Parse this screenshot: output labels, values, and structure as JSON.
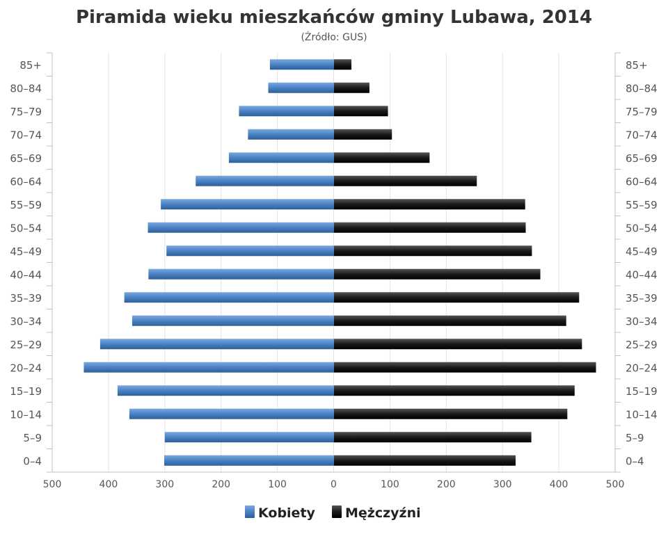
{
  "chart_data": {
    "type": "bar",
    "orientation": "horizontal-population-pyramid",
    "title": "Piramida wieku mieszkańców gminy Lubawa, 2014",
    "subtitle": "(Źródło: GUS)",
    "categories": [
      "0–4",
      "5–9",
      "10–14",
      "15–19",
      "20–24",
      "25–29",
      "30–34",
      "35–39",
      "40–44",
      "45–49",
      "50–54",
      "55–59",
      "60–64",
      "65–69",
      "70–74",
      "75–79",
      "80–84",
      "85+"
    ],
    "series": [
      {
        "name": "Kobiety",
        "color": "#4a82c3",
        "values": [
          302,
          301,
          364,
          385,
          445,
          416,
          359,
          373,
          330,
          298,
          331,
          308,
          246,
          187,
          153,
          169,
          117,
          114
        ]
      },
      {
        "name": "Mężczyźni",
        "color": "#1a1a1a",
        "values": [
          323,
          351,
          415,
          428,
          466,
          441,
          413,
          436,
          367,
          352,
          341,
          340,
          254,
          170,
          103,
          96,
          63,
          31
        ]
      }
    ],
    "xlim": [
      -500,
      500
    ],
    "x_ticks": [
      "500",
      "400",
      "300",
      "200",
      "100",
      "0",
      "100",
      "200",
      "300",
      "400",
      "500"
    ],
    "grid": true,
    "legend_position": "bottom-center"
  }
}
